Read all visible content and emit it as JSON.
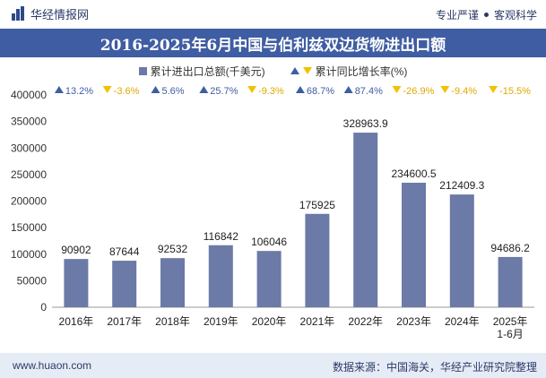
{
  "header": {
    "brand_name": "华经情报网",
    "tagline_1": "专业严谨",
    "tagline_2": "客观科学"
  },
  "footer": {
    "website": "www.huaon.com",
    "source": "数据来源：中国海关，华经产业研究院整理"
  },
  "colors": {
    "bar": "#6b7aa6",
    "title_bg": "#3f5da2",
    "up": "#3f5da2",
    "down": "#f2c100"
  },
  "chart_data": {
    "type": "bar",
    "title": "2016-2025年6月中国与伯利兹双边货物进出口额",
    "categories": [
      "2016年",
      "2017年",
      "2018年",
      "2019年",
      "2020年",
      "2021年",
      "2022年",
      "2023年",
      "2024年",
      "2025年\n1-6月"
    ],
    "series": [
      {
        "name": "累计进出口总额(千美元)",
        "values": [
          90902,
          87644,
          92532,
          116842,
          106046,
          175925,
          328963.9,
          234600.5,
          212409.3,
          94686.2
        ],
        "labels": [
          "90902",
          "87644",
          "92532",
          "116842",
          "106046",
          "175925",
          "328963.9",
          "234600.5",
          "212409.3",
          "94686.2"
        ]
      },
      {
        "name": "累计同比增长率(%)",
        "values": [
          13.2,
          -3.6,
          5.6,
          25.7,
          -9.3,
          68.7,
          87.4,
          -26.9,
          -9.4,
          -15.5
        ],
        "labels": [
          "13.2%",
          "-3.6%",
          "5.6%",
          "25.7%",
          "-9.3%",
          "68.7%",
          "87.4%",
          "-26.9%",
          "-9.4%",
          "-15.5%"
        ]
      }
    ],
    "yticks": [
      "0",
      "50000",
      "100000",
      "150000",
      "200000",
      "250000",
      "300000",
      "350000",
      "400000"
    ],
    "ylim": [
      0,
      400000
    ],
    "legend_position": "top-center"
  }
}
